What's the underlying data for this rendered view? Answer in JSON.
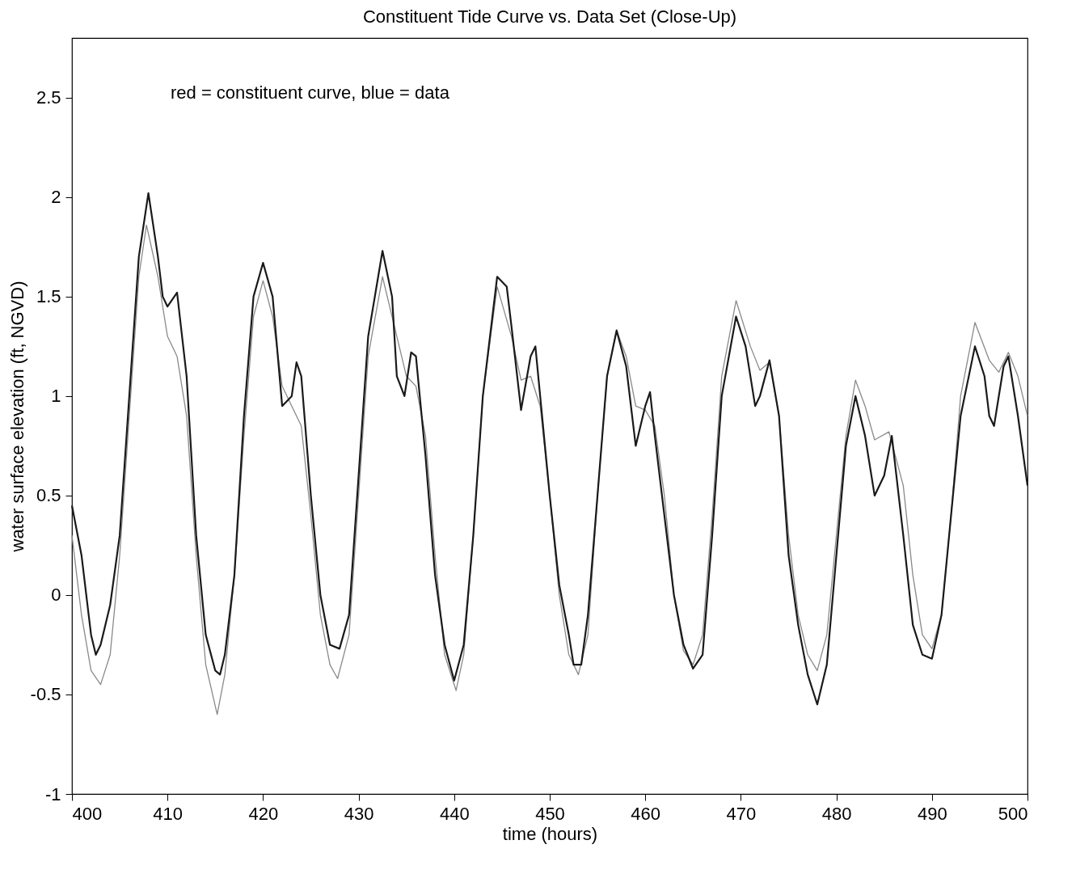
{
  "chart_data": {
    "type": "line",
    "title": "Constituent Tide Curve vs. Data Set (Close-Up)",
    "xlabel": "time (hours)",
    "ylabel": "water surface elevation (ft, NGVD)",
    "annotations": [
      "red = constituent curve, blue = data"
    ],
    "xlim": [
      400,
      500
    ],
    "xticks": [
      400,
      410,
      420,
      430,
      440,
      450,
      460,
      470,
      480,
      490,
      500
    ],
    "ylim": [
      -1,
      2.8
    ],
    "yticks": [
      {
        "value": -1,
        "label": "-1"
      },
      -0.5,
      {
        "value": 0,
        "label": "0"
      },
      0.5,
      {
        "value": 1,
        "label": "1"
      },
      1.5,
      {
        "value": 2,
        "label": "2"
      },
      2.5
    ],
    "grid": false,
    "line_style": "solid",
    "marker": "none",
    "series": [
      {
        "color": "#8a8a8a",
        "x": [
          400,
          401,
          402,
          403,
          404,
          405,
          406,
          407,
          407.8,
          409,
          410,
          411,
          412,
          413,
          414,
          415.2,
          416,
          417,
          418,
          419,
          420,
          421,
          422,
          423,
          424,
          425,
          426,
          427,
          427.8,
          429,
          430,
          431,
          432.5,
          434,
          435,
          436,
          437,
          438,
          439,
          440.2,
          441,
          442,
          443,
          444.5,
          446,
          447,
          448,
          449,
          450,
          451,
          452,
          453,
          454,
          455,
          456,
          457,
          458,
          459,
          460,
          461,
          462,
          463,
          464,
          465,
          466,
          467,
          468,
          469.5,
          471,
          472,
          473,
          474,
          475,
          476,
          477,
          478,
          479,
          480,
          481,
          482,
          483,
          484,
          485.5,
          487,
          488,
          489,
          490,
          491,
          492,
          493,
          494.5,
          496,
          497,
          498,
          499,
          500
        ],
        "values": [
          0.3,
          -0.1,
          -0.38,
          -0.45,
          -0.3,
          0.2,
          0.9,
          1.6,
          1.86,
          1.6,
          1.3,
          1.2,
          0.9,
          0.2,
          -0.35,
          -0.6,
          -0.4,
          0.1,
          0.8,
          1.4,
          1.58,
          1.4,
          1.05,
          0.95,
          0.85,
          0.4,
          -0.1,
          -0.35,
          -0.42,
          -0.2,
          0.5,
          1.2,
          1.6,
          1.3,
          1.1,
          1.05,
          0.8,
          0.2,
          -0.3,
          -0.48,
          -0.3,
          0.3,
          1.0,
          1.55,
          1.3,
          1.08,
          1.1,
          0.95,
          0.5,
          0,
          -0.3,
          -0.4,
          -0.2,
          0.5,
          1.1,
          1.33,
          1.2,
          0.95,
          0.93,
          0.85,
          0.5,
          0,
          -0.28,
          -0.35,
          -0.2,
          0.4,
          1.1,
          1.48,
          1.25,
          1.13,
          1.17,
          0.9,
          0.3,
          -0.1,
          -0.3,
          -0.38,
          -0.2,
          0.3,
          0.8,
          1.08,
          0.95,
          0.78,
          0.82,
          0.55,
          0.1,
          -0.2,
          -0.27,
          -0.1,
          0.4,
          1.0,
          1.37,
          1.18,
          1.12,
          1.22,
          1.1,
          0.9
        ]
      },
      {
        "color": "#1a1a1a",
        "x": [
          400,
          401,
          402,
          402.5,
          403,
          404,
          405,
          406,
          407,
          408,
          409,
          409.5,
          410,
          411,
          412,
          413,
          414,
          415,
          415.5,
          416,
          417,
          418,
          419,
          420,
          421,
          422,
          423,
          423.5,
          424,
          425,
          426,
          427,
          428,
          429,
          430,
          431,
          432.5,
          433.5,
          434,
          434.8,
          435.5,
          436,
          437,
          438,
          439,
          440,
          441,
          442,
          443,
          444.5,
          445.5,
          446,
          447,
          448,
          448.5,
          449,
          450,
          451,
          452,
          452.5,
          453.3,
          454,
          455,
          456,
          457,
          458,
          459,
          460,
          460.5,
          461,
          462,
          463,
          464,
          465,
          466,
          467,
          468,
          469.5,
          470.5,
          471.5,
          472,
          473,
          474,
          475,
          476,
          477,
          478,
          479,
          480,
          481,
          482,
          483,
          484,
          485,
          485.8,
          487,
          488,
          489,
          490,
          491,
          492,
          493,
          494.5,
          495.5,
          496,
          496.5,
          497.5,
          498,
          499,
          500
        ],
        "values": [
          0.45,
          0.2,
          -0.2,
          -0.3,
          -0.25,
          -0.05,
          0.3,
          1.0,
          1.7,
          2.02,
          1.7,
          1.5,
          1.45,
          1.52,
          1.1,
          0.3,
          -0.2,
          -0.38,
          -0.4,
          -0.3,
          0.1,
          0.9,
          1.5,
          1.67,
          1.5,
          0.95,
          1.0,
          1.17,
          1.1,
          0.5,
          0,
          -0.25,
          -0.27,
          -0.1,
          0.6,
          1.3,
          1.73,
          1.5,
          1.1,
          1.0,
          1.22,
          1.2,
          0.7,
          0.1,
          -0.25,
          -0.43,
          -0.25,
          0.3,
          1.0,
          1.6,
          1.55,
          1.35,
          0.93,
          1.2,
          1.25,
          1.0,
          0.5,
          0.05,
          -0.2,
          -0.35,
          -0.35,
          -0.1,
          0.5,
          1.1,
          1.33,
          1.15,
          0.75,
          0.95,
          1.02,
          0.8,
          0.4,
          0,
          -0.25,
          -0.37,
          -0.3,
          0.3,
          1.0,
          1.4,
          1.25,
          0.95,
          1.0,
          1.18,
          0.9,
          0.2,
          -0.15,
          -0.4,
          -0.55,
          -0.35,
          0.2,
          0.75,
          1.0,
          0.8,
          0.5,
          0.6,
          0.8,
          0.3,
          -0.15,
          -0.3,
          -0.32,
          -0.1,
          0.4,
          0.9,
          1.25,
          1.1,
          0.9,
          0.85,
          1.15,
          1.2,
          0.9,
          0.55
        ]
      }
    ]
  }
}
